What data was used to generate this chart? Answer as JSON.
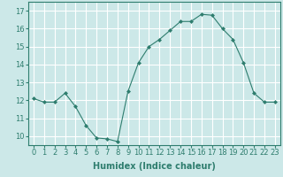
{
  "x": [
    0,
    1,
    2,
    3,
    4,
    5,
    6,
    7,
    8,
    9,
    10,
    11,
    12,
    13,
    14,
    15,
    16,
    17,
    18,
    19,
    20,
    21,
    22,
    23
  ],
  "y": [
    12.1,
    11.9,
    11.9,
    12.4,
    11.65,
    10.6,
    9.9,
    9.85,
    9.7,
    12.5,
    14.1,
    15.0,
    15.4,
    15.9,
    16.4,
    16.4,
    16.8,
    16.75,
    16.0,
    15.4,
    14.1,
    12.4,
    11.9,
    11.9
  ],
  "line_color": "#2e7d6e",
  "marker": "D",
  "marker_size": 2,
  "bg_color": "#cce8e8",
  "grid_color": "#ffffff",
  "xlabel": "Humidex (Indice chaleur)",
  "xlim": [
    -0.5,
    23.5
  ],
  "ylim": [
    9.5,
    17.5
  ],
  "yticks": [
    10,
    11,
    12,
    13,
    14,
    15,
    16,
    17
  ],
  "xticks": [
    0,
    1,
    2,
    3,
    4,
    5,
    6,
    7,
    8,
    9,
    10,
    11,
    12,
    13,
    14,
    15,
    16,
    17,
    18,
    19,
    20,
    21,
    22,
    23
  ],
  "axis_color": "#2e7d6e",
  "label_fontsize": 7,
  "tick_fontsize": 6
}
